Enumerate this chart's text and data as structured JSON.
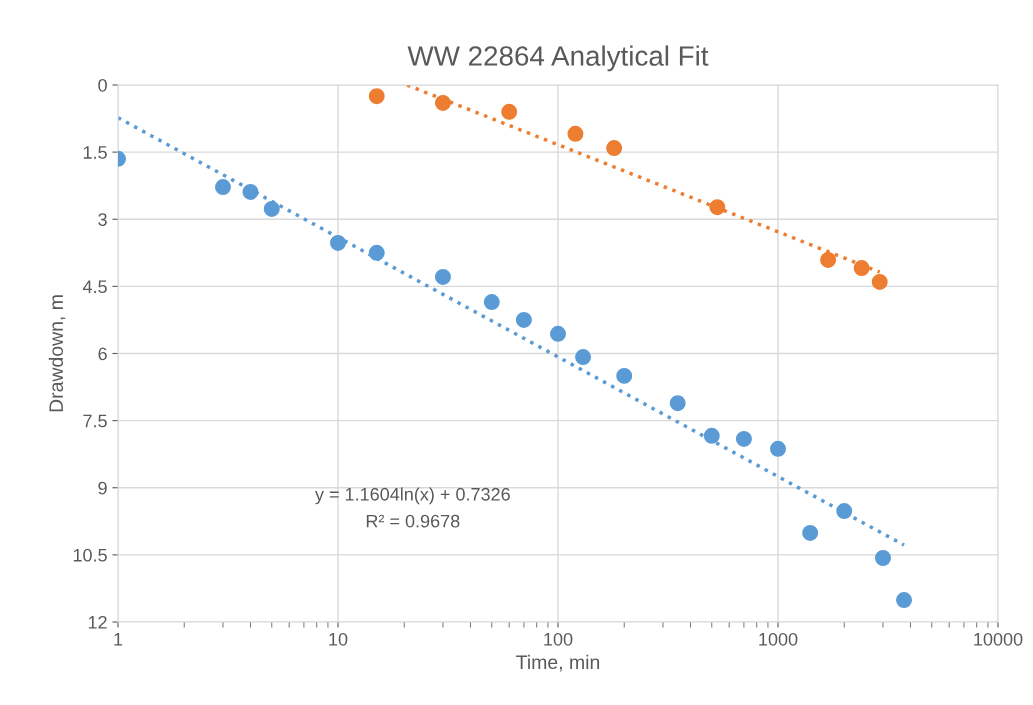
{
  "chart_data": {
    "type": "scatter",
    "title": "WW 22864 Analytical Fit",
    "xlabel": "Time, min",
    "ylabel": "Drawdown, m",
    "log": "x",
    "grid": true,
    "marker": "circle",
    "xlim": [
      1,
      10000
    ],
    "xticks": [
      1,
      10,
      100,
      1000,
      10000
    ],
    "ylim": [
      12,
      0
    ],
    "yticks": [
      0,
      1.5,
      3,
      4.5,
      6,
      7.5,
      9,
      10.5,
      12
    ],
    "series": [
      {
        "color": "#5b9bd5",
        "x": [
          1,
          3,
          4,
          5,
          10,
          15,
          30,
          50,
          70,
          100,
          130,
          200,
          350,
          500,
          700,
          1000,
          1400,
          2000,
          3000,
          3740
        ],
        "values": [
          1.65,
          2.28,
          2.39,
          2.77,
          3.53,
          3.75,
          4.29,
          4.85,
          5.25,
          5.56,
          6.08,
          6.5,
          7.11,
          7.84,
          7.91,
          8.13,
          10.01,
          9.52,
          10.57,
          11.51
        ]
      },
      {
        "color": "#ed7d31",
        "x": [
          15,
          30,
          60,
          120,
          180,
          530,
          1690,
          2400,
          2900
        ],
        "values": [
          0.25,
          0.4,
          0.6,
          1.09,
          1.41,
          2.73,
          3.91,
          4.09,
          4.4
        ]
      },
      {
        "type": "line",
        "color": "#5b9bd5",
        "marker": "none",
        "line_style": "dotted",
        "x": [
          1,
          3740
        ],
        "values": [
          0.73,
          10.28
        ]
      },
      {
        "type": "line",
        "color": "#ed7d31",
        "marker": "none",
        "line_style": "dotted",
        "x": [
          20.6,
          2900
        ],
        "values": [
          0,
          4.18
        ]
      }
    ],
    "annotations": [
      "y = 1.1604ln(x) + 0.7326",
      "R² = 0.9678"
    ]
  }
}
